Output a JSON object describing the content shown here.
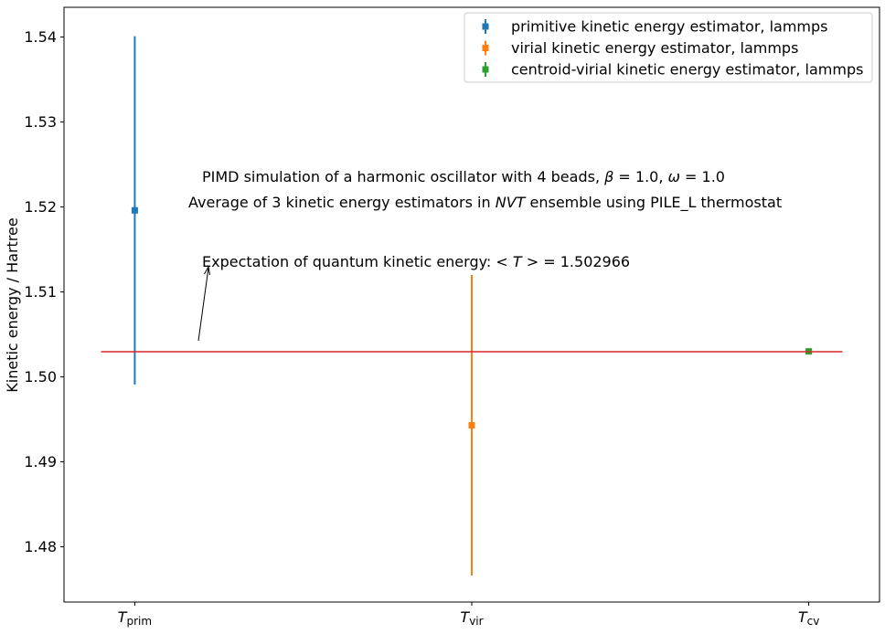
{
  "chart_data": {
    "type": "scatter",
    "ylabel": "Kinetic energy / Hartree",
    "ylim": [
      1.4735,
      1.5435
    ],
    "xlim": [
      -0.21,
      2.21
    ],
    "yticks": [
      1.48,
      1.49,
      1.5,
      1.51,
      1.52,
      1.53,
      1.54
    ],
    "ytick_labels": [
      "1.48",
      "1.49",
      "1.50",
      "1.51",
      "1.52",
      "1.53",
      "1.54"
    ],
    "categories": [
      {
        "x": 0,
        "base": "T",
        "sub": "prim"
      },
      {
        "x": 1,
        "base": "T",
        "sub": "vir"
      },
      {
        "x": 2,
        "base": "T",
        "sub": "cv"
      }
    ],
    "series": [
      {
        "name": "primitive kinetic energy estimator, lammps",
        "color": "#1f77b4",
        "x": 0,
        "y": 1.5196,
        "yerr": 0.0205
      },
      {
        "name": "virial kinetic energy estimator, lammps",
        "color": "#ff7f0e",
        "x": 1,
        "y": 1.4943,
        "yerr": 0.0177
      },
      {
        "name": "centroid-virial kinetic energy estimator, lammps",
        "color": "#2ca02c",
        "x": 2,
        "y": 1.503,
        "yerr": 0.0001
      }
    ],
    "reference_line": {
      "y": 1.502966,
      "x_from": -0.1,
      "x_to": 2.1,
      "color": "#d62728"
    },
    "annotations": {
      "line1": {
        "prefix": "PIMD simulation of a harmonic oscillator with 4 beads, ",
        "beta_sym": "β",
        "beta_val": " = 1.0, ",
        "omega_sym": "ω",
        "omega_val": " = 1.0"
      },
      "line2": {
        "prefix": "Average of 3 kinetic energy estimators in ",
        "emph": "NVT",
        "suffix": " ensemble using PILE_L thermostat"
      },
      "expectation": {
        "prefix": "Expectation of quantum kinetic energy: ",
        "lt": "< ",
        "var": "T",
        "gt": " >",
        "eq": " = 1.502966"
      }
    },
    "legend_position": "upper right",
    "grid": false
  }
}
